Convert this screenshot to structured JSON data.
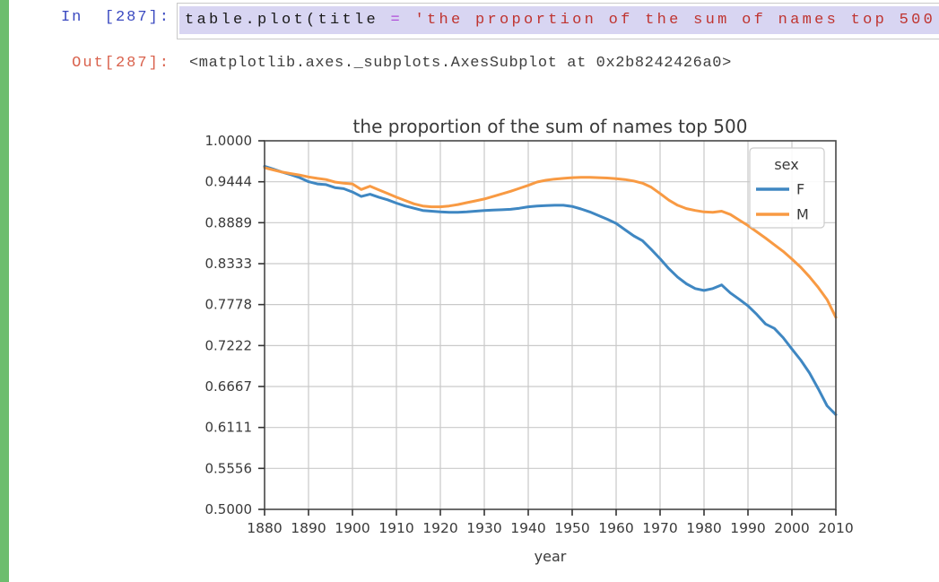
{
  "notebook": {
    "input_prompt": "In  [287]:",
    "output_prompt": "Out[287]:",
    "code": {
      "call": "table.plot(title ",
      "operator": "= ",
      "string": "'the proportion of the sum of names top 500'",
      "trailing": ","
    },
    "output_text": "<matplotlib.axes._subplots.AxesSubplot at 0x2b8242426a0>"
  },
  "colors": {
    "green_bar": "#6dbd6e",
    "in_prompt": "#3a49c0",
    "out_prompt": "#d9614c",
    "code_text": "#1a1a1a",
    "operator": "#b04fd8",
    "string": "#bf3430",
    "selection": "#d8d5f2",
    "box_border": "#c9c9c9",
    "output_text": "#3f3f3f"
  },
  "chart_data": {
    "type": "line",
    "title": "the proportion of the sum of names top 500",
    "xlabel": "year",
    "ylabel": "",
    "xlim": [
      1880,
      2010
    ],
    "ylim": [
      0.5,
      1.0
    ],
    "grid": true,
    "x_ticks": [
      1880,
      1890,
      1900,
      1910,
      1920,
      1930,
      1940,
      1950,
      1960,
      1970,
      1980,
      1990,
      2000,
      2010
    ],
    "y_ticks": [
      {
        "value": 0.5,
        "label": "0.5000"
      },
      {
        "value": 0.5556,
        "label": "0.5556"
      },
      {
        "value": 0.6111,
        "label": "0.6111"
      },
      {
        "value": 0.6667,
        "label": "0.6667"
      },
      {
        "value": 0.7222,
        "label": "0.7222"
      },
      {
        "value": 0.7778,
        "label": "0.7778"
      },
      {
        "value": 0.8333,
        "label": "0.8333"
      },
      {
        "value": 0.8889,
        "label": "0.8889"
      },
      {
        "value": 0.9444,
        "label": "0.9444"
      },
      {
        "value": 1.0,
        "label": "1.0000"
      }
    ],
    "legend": {
      "title": "sex",
      "position": "upper right"
    },
    "style": {
      "grid_color": "#c9c9c9",
      "spine_color": "#4a4a4a",
      "tick_color": "#333333",
      "text_color": "#3a3a3a",
      "legend_border": "#cccccc",
      "legend_bg": "rgba(255,255,255,0.88)"
    },
    "x": [
      1880,
      1882,
      1884,
      1886,
      1888,
      1890,
      1892,
      1894,
      1896,
      1898,
      1900,
      1902,
      1904,
      1906,
      1908,
      1910,
      1912,
      1914,
      1916,
      1918,
      1920,
      1922,
      1924,
      1926,
      1928,
      1930,
      1932,
      1934,
      1936,
      1938,
      1940,
      1942,
      1944,
      1946,
      1948,
      1950,
      1952,
      1954,
      1956,
      1958,
      1960,
      1962,
      1964,
      1966,
      1968,
      1970,
      1972,
      1974,
      1976,
      1978,
      1980,
      1982,
      1984,
      1986,
      1988,
      1990,
      1992,
      1994,
      1996,
      1998,
      2000,
      2002,
      2004,
      2006,
      2008,
      2010
    ],
    "series": [
      {
        "name": "F",
        "color": "#3f87c2",
        "values": [
          0.9655,
          0.9615,
          0.9575,
          0.954,
          0.95,
          0.9445,
          0.9415,
          0.9405,
          0.9365,
          0.935,
          0.9305,
          0.9245,
          0.9275,
          0.9235,
          0.92,
          0.9155,
          0.9115,
          0.9085,
          0.9055,
          0.9045,
          0.9035,
          0.903,
          0.903,
          0.9035,
          0.9045,
          0.9055,
          0.906,
          0.9065,
          0.907,
          0.9085,
          0.9105,
          0.9115,
          0.912,
          0.9125,
          0.9125,
          0.911,
          0.9075,
          0.9035,
          0.8985,
          0.8935,
          0.888,
          0.8795,
          0.871,
          0.8645,
          0.8525,
          0.84,
          0.8265,
          0.815,
          0.806,
          0.7995,
          0.797,
          0.7995,
          0.8045,
          0.7935,
          0.785,
          0.776,
          0.7645,
          0.7515,
          0.7455,
          0.733,
          0.7175,
          0.7025,
          0.685,
          0.6635,
          0.6405,
          0.6285
        ]
      },
      {
        "name": "M",
        "color": "#f89a43",
        "values": [
          0.9635,
          0.9605,
          0.9575,
          0.9555,
          0.9535,
          0.951,
          0.949,
          0.9475,
          0.944,
          0.9425,
          0.9415,
          0.934,
          0.9385,
          0.9335,
          0.9285,
          0.9235,
          0.919,
          0.9145,
          0.9115,
          0.9105,
          0.9105,
          0.9115,
          0.9135,
          0.916,
          0.9185,
          0.921,
          0.9245,
          0.928,
          0.9315,
          0.9355,
          0.9395,
          0.944,
          0.9465,
          0.948,
          0.949,
          0.95,
          0.9505,
          0.9505,
          0.95,
          0.9495,
          0.9485,
          0.9475,
          0.9455,
          0.9425,
          0.937,
          0.9285,
          0.9195,
          0.9125,
          0.908,
          0.9055,
          0.9035,
          0.903,
          0.9045,
          0.9,
          0.8925,
          0.885,
          0.8765,
          0.868,
          0.859,
          0.85,
          0.8395,
          0.8285,
          0.8155,
          0.801,
          0.7845,
          0.7605
        ]
      }
    ]
  }
}
